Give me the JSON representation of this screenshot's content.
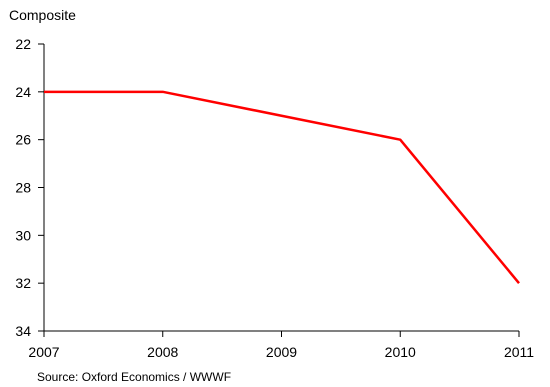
{
  "chart_data": {
    "type": "line",
    "title": "",
    "ylabel": "Composite",
    "xlabel": "",
    "x": [
      "2007",
      "2008",
      "2009",
      "2010",
      "2011"
    ],
    "series": [
      {
        "values": [
          24,
          24,
          25,
          26,
          32
        ],
        "color": "#ff0000"
      }
    ],
    "ylim": [
      22,
      34
    ],
    "y_axis_inverted": true,
    "y_ticks": [
      22,
      24,
      26,
      28,
      30,
      32,
      34
    ],
    "grid": false,
    "legend": "none"
  },
  "source": "Source: Oxford Economics / WWWF",
  "colors": {
    "axis": "#000000",
    "line": "#ff0000"
  }
}
